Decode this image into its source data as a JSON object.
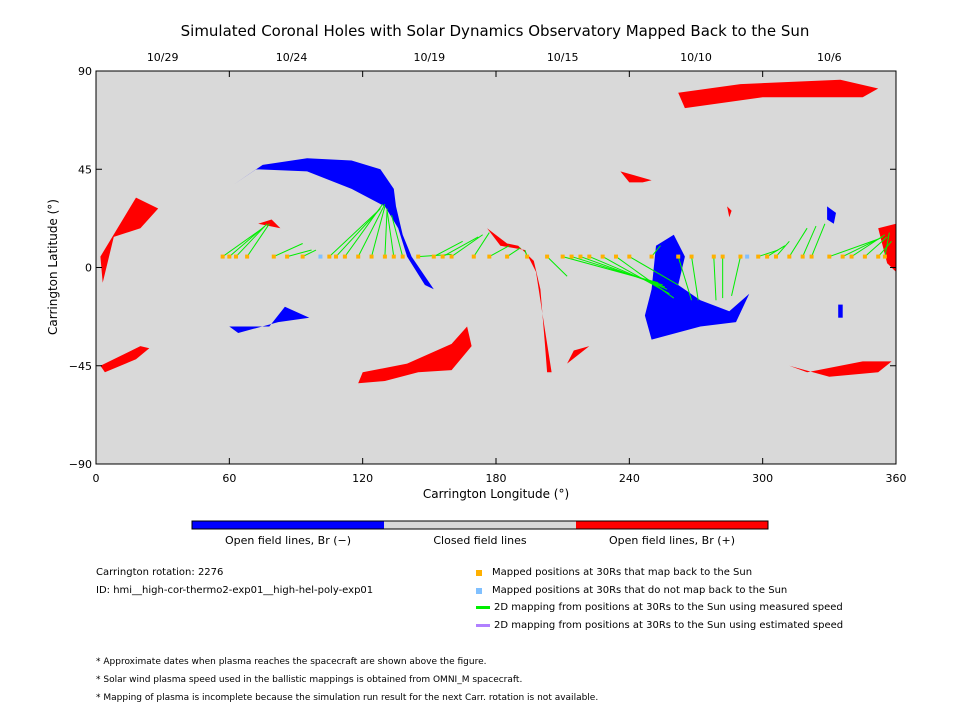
{
  "chart_data": {
    "type": "scatter",
    "title": "Simulated Coronal Holes with Solar Dynamics Observatory Mapped Back to the Sun",
    "xlabel": "Carrington Longitude (°)",
    "ylabel": "Carrington Latitude (°)",
    "xlim": [
      0,
      360
    ],
    "ylim": [
      -90,
      90
    ],
    "xticks": [
      "0",
      "60",
      "120",
      "180",
      "240",
      "300",
      "360"
    ],
    "yticks": [
      "90",
      "45",
      "0",
      "−45",
      "−90"
    ],
    "top_axis": {
      "labels": [
        {
          "x": 30,
          "label": "10/29"
        },
        {
          "x": 88,
          "label": "10/24"
        },
        {
          "x": 150,
          "label": "10/19"
        },
        {
          "x": 210,
          "label": "10/15"
        },
        {
          "x": 270,
          "label": "10/10"
        },
        {
          "x": 330,
          "label": "10/6"
        }
      ]
    },
    "background_color": "#d9d9d9",
    "colors": {
      "open_negative": "#0000ff",
      "closed": "#d9d9d9",
      "open_positive": "#ff0000",
      "mapped": "#ffb000",
      "unmapped": "#80c0ff",
      "measured_line": "#00ee00",
      "estimated_line": "#b080ff"
    },
    "coronal_holes": [
      {
        "polarity": "negative",
        "points": [
          [
            60,
            -27
          ],
          [
            78,
            -27
          ],
          [
            85,
            -18
          ],
          [
            96,
            -23
          ],
          [
            82,
            -25
          ],
          [
            64,
            -30
          ]
        ]
      },
      {
        "polarity": "negative",
        "points": [
          [
            62,
            38
          ],
          [
            75,
            47
          ],
          [
            95,
            50
          ],
          [
            115,
            49
          ],
          [
            128,
            45
          ],
          [
            134,
            36
          ],
          [
            135,
            28
          ],
          [
            138,
            15
          ],
          [
            142,
            5
          ],
          [
            152,
            -10
          ],
          [
            148,
            -8
          ],
          [
            140,
            5
          ],
          [
            136,
            18
          ],
          [
            130,
            28
          ],
          [
            115,
            36
          ],
          [
            95,
            44
          ],
          [
            72,
            45
          ]
        ]
      },
      {
        "polarity": "negative",
        "points": [
          [
            252,
            10
          ],
          [
            260,
            15
          ],
          [
            265,
            5
          ],
          [
            262,
            -8
          ],
          [
            272,
            -15
          ],
          [
            285,
            -20
          ],
          [
            294,
            -12
          ],
          [
            288,
            -25
          ],
          [
            272,
            -27
          ],
          [
            250,
            -33
          ],
          [
            247,
            -22
          ],
          [
            250,
            -10
          ]
        ]
      },
      {
        "polarity": "negative",
        "points": [
          [
            329,
            28
          ],
          [
            333,
            25
          ],
          [
            332,
            20
          ],
          [
            329,
            22
          ]
        ]
      },
      {
        "polarity": "negative",
        "points": [
          [
            334,
            -17
          ],
          [
            336,
            -17
          ],
          [
            336,
            -23
          ],
          [
            334,
            -23
          ]
        ]
      },
      {
        "polarity": "positive",
        "points": [
          [
            2,
            5
          ],
          [
            18,
            32
          ],
          [
            28,
            27
          ],
          [
            20,
            18
          ],
          [
            8,
            14
          ],
          [
            3,
            -7
          ]
        ]
      },
      {
        "polarity": "positive",
        "points": [
          [
            2,
            -45
          ],
          [
            20,
            -36
          ],
          [
            24,
            -37
          ],
          [
            18,
            -42
          ],
          [
            4,
            -48
          ]
        ]
      },
      {
        "polarity": "positive",
        "points": [
          [
            73,
            20
          ],
          [
            83,
            18
          ],
          [
            79,
            22
          ]
        ]
      },
      {
        "polarity": "positive",
        "points": [
          [
            120,
            -48
          ],
          [
            140,
            -44
          ],
          [
            160,
            -35
          ],
          [
            167,
            -27
          ],
          [
            169,
            -36
          ],
          [
            160,
            -47
          ],
          [
            145,
            -48
          ],
          [
            130,
            -52
          ],
          [
            118,
            -53
          ]
        ]
      },
      {
        "polarity": "positive",
        "points": [
          [
            176,
            18
          ],
          [
            185,
            11
          ],
          [
            190,
            10
          ],
          [
            197,
            3
          ],
          [
            200,
            -10
          ],
          [
            202,
            -35
          ],
          [
            203,
            -48
          ],
          [
            205,
            -48
          ],
          [
            201,
            -22
          ],
          [
            198,
            -2
          ],
          [
            193,
            8
          ],
          [
            182,
            10
          ]
        ]
      },
      {
        "polarity": "positive",
        "points": [
          [
            215,
            -38
          ],
          [
            222,
            -36
          ],
          [
            212,
            -44
          ]
        ]
      },
      {
        "polarity": "positive",
        "points": [
          [
            262,
            80
          ],
          [
            290,
            84
          ],
          [
            335,
            86
          ],
          [
            352,
            82
          ],
          [
            345,
            78
          ],
          [
            300,
            78
          ],
          [
            265,
            73
          ]
        ]
      },
      {
        "polarity": "positive",
        "points": [
          [
            236,
            44
          ],
          [
            250,
            40
          ],
          [
            246,
            39
          ],
          [
            240,
            39
          ]
        ]
      },
      {
        "polarity": "positive",
        "points": [
          [
            284,
            28
          ],
          [
            286,
            26
          ],
          [
            285,
            23
          ]
        ]
      },
      {
        "polarity": "positive",
        "points": [
          [
            312,
            -45
          ],
          [
            330,
            -50
          ],
          [
            352,
            -48
          ],
          [
            358,
            -43
          ],
          [
            345,
            -43
          ],
          [
            320,
            -48
          ]
        ]
      },
      {
        "polarity": "positive",
        "points": [
          [
            352,
            18
          ],
          [
            360,
            20
          ],
          [
            360,
            -2
          ],
          [
            356,
            2
          ]
        ]
      }
    ],
    "mapping_points": [
      {
        "x": 57,
        "y": 5,
        "lat": 18,
        "lon": 75
      },
      {
        "x": 60,
        "y": 5,
        "lat": 19,
        "lon": 76
      },
      {
        "x": 63,
        "y": 5,
        "lat": 20,
        "lon": 77
      },
      {
        "x": 68,
        "y": 5,
        "lat": 20,
        "lon": 78
      },
      {
        "x": 80,
        "y": 5,
        "lat": 11,
        "lon": 93
      },
      {
        "x": 86,
        "y": 5,
        "lat": 8,
        "lon": 97
      },
      {
        "x": 93,
        "y": 5,
        "lat": 8,
        "lon": 99
      },
      {
        "x": 101,
        "y": 5,
        "mapped": false
      },
      {
        "x": 105,
        "y": 5,
        "lat": 26,
        "lon": 127
      },
      {
        "x": 108,
        "y": 5,
        "lat": 27,
        "lon": 128
      },
      {
        "x": 112,
        "y": 5,
        "lat": 29,
        "lon": 129
      },
      {
        "x": 118,
        "y": 5,
        "lat": 29,
        "lon": 130
      },
      {
        "x": 124,
        "y": 5,
        "lat": 28,
        "lon": 130
      },
      {
        "x": 130,
        "y": 5,
        "lat": 27,
        "lon": 131
      },
      {
        "x": 134,
        "y": 5,
        "lat": 26,
        "lon": 131
      },
      {
        "x": 138,
        "y": 5,
        "lat": 24,
        "lon": 133
      },
      {
        "x": 145,
        "y": 5,
        "lat": 6,
        "lon": 160
      },
      {
        "x": 152,
        "y": 5,
        "lat": 12,
        "lon": 165
      },
      {
        "x": 156,
        "y": 5,
        "lat": 14,
        "lon": 172
      },
      {
        "x": 160,
        "y": 5,
        "lat": 15,
        "lon": 174
      },
      {
        "x": 170,
        "y": 5,
        "lat": 16,
        "lon": 177
      },
      {
        "x": 177,
        "y": 5,
        "lat": 10,
        "lon": 186
      },
      {
        "x": 185,
        "y": 5,
        "lat": 9,
        "lon": 191
      },
      {
        "x": 194,
        "y": 5,
        "lat": 8,
        "lon": 193
      },
      {
        "x": 203,
        "y": 5,
        "lat": -4,
        "lon": 212
      },
      {
        "x": 210,
        "y": 5,
        "lat": -7,
        "lon": 253
      },
      {
        "x": 214,
        "y": 5,
        "lat": -8,
        "lon": 255
      },
      {
        "x": 218,
        "y": 5,
        "lat": -9,
        "lon": 256
      },
      {
        "x": 222,
        "y": 5,
        "lat": -10,
        "lon": 257
      },
      {
        "x": 228,
        "y": 5,
        "lat": -12,
        "lon": 258
      },
      {
        "x": 234,
        "y": 5,
        "lat": -14,
        "lon": 260
      },
      {
        "x": 240,
        "y": 5,
        "lat": -8,
        "lon": 262
      },
      {
        "x": 250,
        "y": 5,
        "lat": 10,
        "lon": 254
      },
      {
        "x": 262,
        "y": 5,
        "lat": -15,
        "lon": 268
      },
      {
        "x": 268,
        "y": 5,
        "lat": -15,
        "lon": 271
      },
      {
        "x": 278,
        "y": 5,
        "lat": -15,
        "lon": 279
      },
      {
        "x": 282,
        "y": 5,
        "lat": -14,
        "lon": 282
      },
      {
        "x": 290,
        "y": 5,
        "lat": -13,
        "lon": 286
      },
      {
        "x": 293,
        "y": 5,
        "mapped": false
      },
      {
        "x": 298,
        "y": 5,
        "lat": 8,
        "lon": 307
      },
      {
        "x": 302,
        "y": 5,
        "lat": 10,
        "lon": 310
      },
      {
        "x": 306,
        "y": 5,
        "lat": 12,
        "lon": 312
      },
      {
        "x": 312,
        "y": 5,
        "lat": 18,
        "lon": 320
      },
      {
        "x": 318,
        "y": 5,
        "lat": 19,
        "lon": 324
      },
      {
        "x": 322,
        "y": 5,
        "lat": 20,
        "lon": 328
      },
      {
        "x": 330,
        "y": 5,
        "lat": 13,
        "lon": 352
      },
      {
        "x": 336,
        "y": 5,
        "lat": 14,
        "lon": 354
      },
      {
        "x": 340,
        "y": 5,
        "lat": 15,
        "lon": 355
      },
      {
        "x": 346,
        "y": 5,
        "lat": 14,
        "lon": 356
      },
      {
        "x": 352,
        "y": 5,
        "lat": 12,
        "lon": 358
      },
      {
        "x": 355,
        "y": 5,
        "lat": 16,
        "lon": 357
      }
    ]
  },
  "colorbar": {
    "labels": [
      "Open field lines, Br (−)",
      "Closed field lines",
      "Open field lines, Br (+)"
    ],
    "colors": [
      "#0000ff",
      "#d9d9d9",
      "#ff0000"
    ]
  },
  "info": {
    "rotation": "Carrington rotation: 2276",
    "id": "ID: hmi__high-cor-thermo2-exp01__high-hel-poly-exp01"
  },
  "legend": [
    {
      "kind": "dot",
      "color": "#ffb000",
      "label": "Mapped positions at 30Rs that map back to the Sun"
    },
    {
      "kind": "dot",
      "color": "#80c0ff",
      "label": "Mapped positions at 30Rs that do not map back to the Sun"
    },
    {
      "kind": "line",
      "color": "#00ee00",
      "label": "2D mapping from positions at 30Rs to the Sun using measured speed"
    },
    {
      "kind": "line",
      "color": "#b080ff",
      "label": "2D mapping from positions at 30Rs to the Sun using estimated speed"
    }
  ],
  "notes": [
    "* Approximate dates when plasma reaches the spacecraft are shown above the figure.",
    "* Solar wind plasma speed used in the ballistic mappings is obtained from OMNI_M spacecraft.",
    "* Mapping of plasma is incomplete because the simulation run result for the next Carr. rotation is not available."
  ]
}
